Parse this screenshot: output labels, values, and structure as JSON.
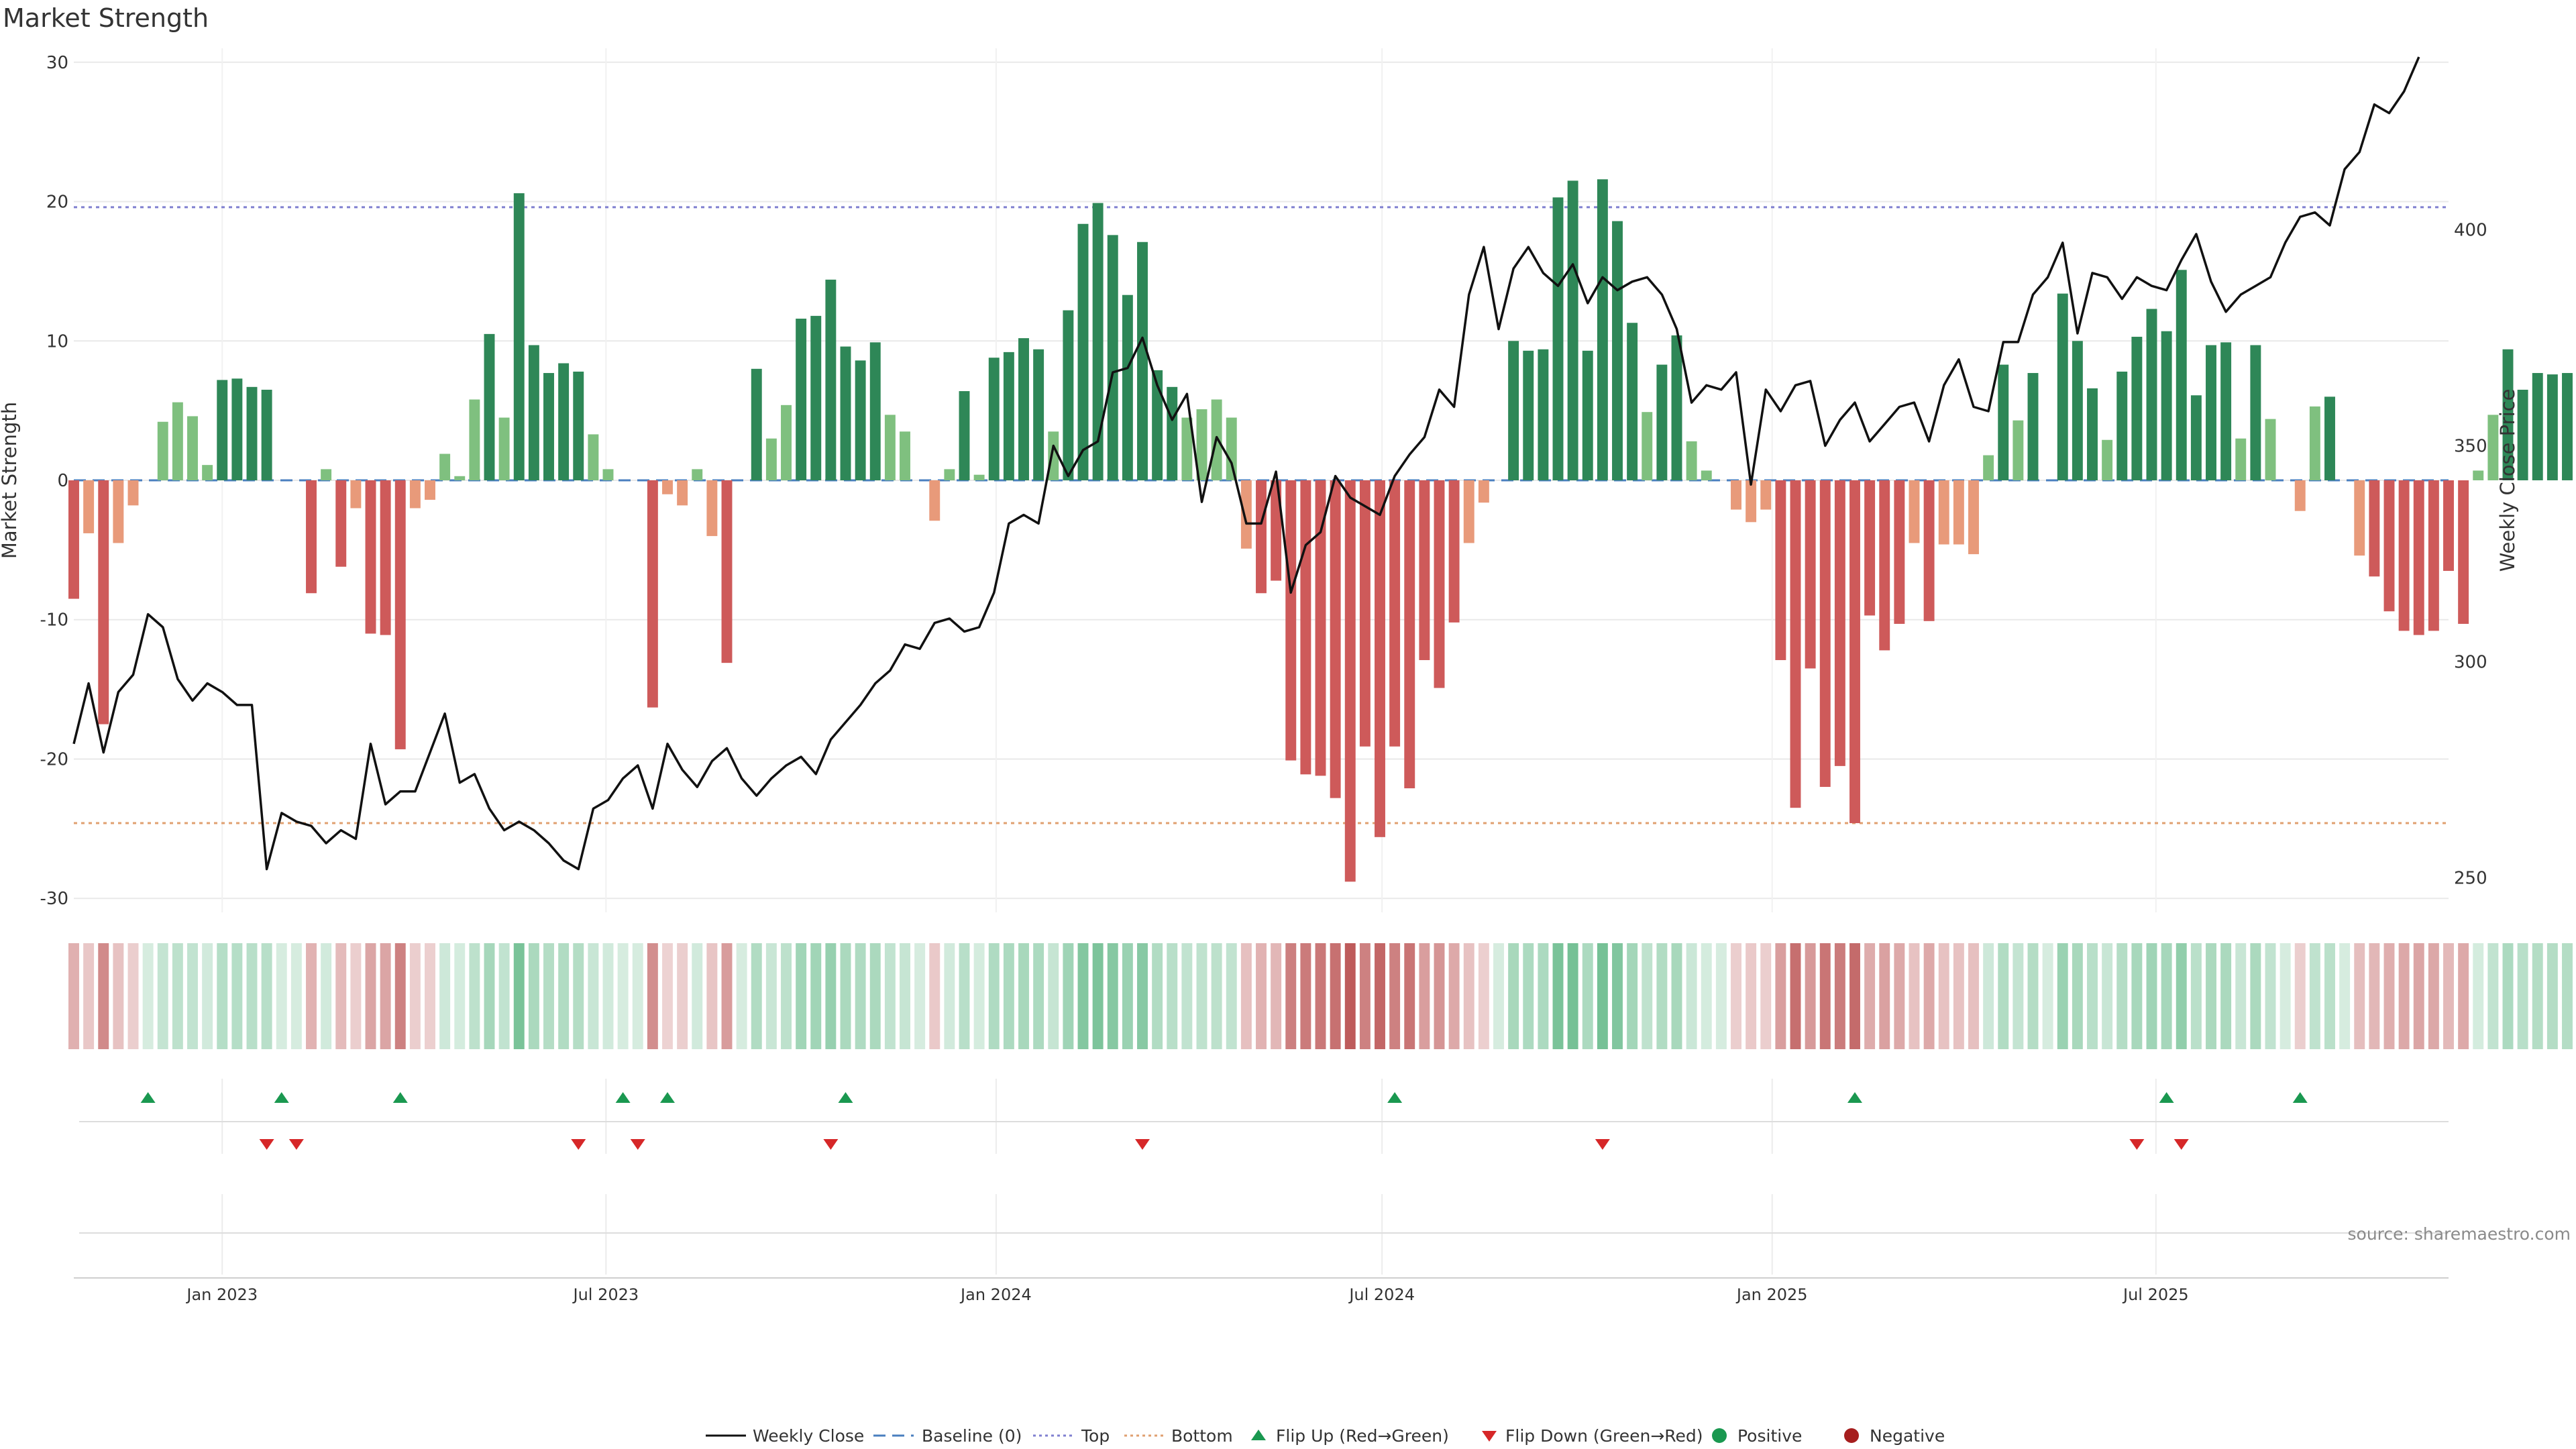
{
  "chart_data": {
    "type": "bar",
    "title": "Market Strength",
    "ylabel": "Market Strength",
    "y2label": "Weekly Close Price",
    "ylim": [
      -31,
      31
    ],
    "y2lim": [
      242,
      442
    ],
    "yticks": [
      30,
      20,
      10,
      0,
      -10,
      -20,
      -30
    ],
    "y2ticks": [
      400,
      350,
      300,
      250
    ],
    "xlim": [
      "2022-10-23",
      "2025-11-16"
    ],
    "xticks": [
      {
        "date": "2023-01-01",
        "label": "Jan 2023"
      },
      {
        "date": "2023-07-01",
        "label": "Jul 2023"
      },
      {
        "date": "2024-01-01",
        "label": "Jan 2024"
      },
      {
        "date": "2024-07-01",
        "label": "Jul 2024"
      },
      {
        "date": "2025-01-01",
        "label": "Jan 2025"
      },
      {
        "date": "2025-07-01",
        "label": "Jul 2025"
      }
    ],
    "grid": true,
    "series": [
      {
        "name": "Market Strength",
        "type": "bar",
        "start": "2022-10-23",
        "interval_days": 7,
        "values": [
          -8.5,
          -3.8,
          -17.5,
          -4.5,
          -1.8,
          0,
          4.2,
          5.6,
          4.6,
          1.1,
          7.2,
          7.3,
          6.7,
          6.5,
          0,
          0,
          -8.1,
          0.8,
          -6.2,
          -2,
          -11,
          -11.1,
          -19.3,
          -2,
          -1.4,
          1.9,
          0.3,
          5.8,
          10.5,
          4.5,
          20.6,
          9.7,
          7.7,
          8.4,
          7.8,
          3.3,
          0.8,
          0,
          0,
          -16.3,
          -1,
          -1.8,
          0.8,
          -4,
          -13.1,
          0,
          8,
          3,
          5.4,
          11.6,
          11.8,
          14.4,
          9.6,
          8.6,
          9.9,
          4.7,
          3.5,
          0,
          -2.9,
          0.8,
          6.4,
          0.4,
          8.8,
          9.2,
          10.2,
          9.4,
          3.5,
          12.2,
          18.4,
          19.9,
          17.6,
          13.3,
          17.1,
          7.9,
          6.7,
          4.5,
          5.1,
          5.8,
          4.5,
          -4.9,
          -8.1,
          -7.2,
          -20.1,
          -21.1,
          -21.2,
          -22.8,
          -28.8,
          -19.1,
          -25.6,
          -19.1,
          -22.1,
          -12.9,
          -14.9,
          -10.2,
          -4.5,
          -1.6,
          0,
          10,
          9.3,
          9.4,
          20.3,
          21.5,
          9.3,
          21.6,
          18.6,
          11.3,
          4.9,
          8.3,
          10.4,
          2.8,
          0.7,
          0,
          -2.1,
          -3,
          -2.1,
          -12.9,
          -23.5,
          -13.5,
          -22,
          -20.5,
          -24.6,
          -9.7,
          -12.2,
          -10.3,
          -4.5,
          -10.1,
          -4.6,
          -4.6,
          -5.3,
          1.8,
          8.3,
          4.3,
          7.7,
          0,
          13.4,
          10,
          6.6,
          2.9,
          7.8,
          10.3,
          12.3,
          10.7,
          15.1,
          6.1,
          9.7,
          9.9,
          3,
          9.7,
          4.4,
          0,
          -2.2,
          5.3,
          6,
          0,
          -5.4,
          -6.9,
          -9.4,
          -10.8,
          -11.1,
          -10.8,
          -6.5,
          -10.3,
          0.7,
          4.7,
          9.4,
          6.5,
          7.7,
          7.6,
          7.7
        ]
      },
      {
        "name": "Weekly Close",
        "type": "line",
        "axis": "right",
        "start": "2022-10-23",
        "interval_days": 7,
        "values": [
          281,
          295,
          279,
          293,
          297,
          311,
          308,
          296,
          291,
          295,
          293,
          290,
          290,
          252,
          265,
          263,
          262,
          258,
          261,
          259,
          281,
          267,
          270,
          270,
          279,
          288,
          272,
          274,
          266,
          261,
          263,
          261,
          258,
          254,
          252,
          266,
          268,
          273,
          276,
          266,
          281,
          275,
          271,
          277,
          280,
          273,
          269,
          273,
          276,
          278,
          274,
          282,
          286,
          290,
          295,
          298,
          304,
          303,
          309,
          310,
          307,
          308,
          316,
          332,
          334,
          332,
          350,
          343,
          349,
          351,
          367,
          368,
          375,
          364,
          356,
          362,
          337,
          352,
          346,
          332,
          332,
          344,
          316,
          327,
          330,
          343,
          338,
          336,
          334,
          343,
          348,
          352,
          363,
          359,
          385,
          396,
          377,
          391,
          396,
          390,
          387,
          392,
          383,
          389,
          386,
          388,
          389,
          385,
          377,
          360,
          364,
          363,
          367,
          341,
          363,
          358,
          364,
          365,
          350,
          356,
          360,
          351,
          355,
          359,
          360,
          351,
          364,
          370,
          359,
          358,
          374,
          374,
          385,
          389,
          397,
          376,
          390,
          389,
          384,
          389,
          387,
          386,
          393,
          399,
          388,
          381,
          385,
          387,
          389,
          397,
          403,
          404,
          401,
          414,
          418,
          429,
          427,
          432,
          440
        ]
      }
    ],
    "baseline": 0,
    "top": 19.6,
    "bottom": -24.6,
    "flip_up_indices": [
      5,
      14,
      22,
      37,
      40,
      52,
      89,
      120,
      141,
      150
    ],
    "flip_down_indices": [
      13,
      15,
      34,
      38,
      51,
      72,
      103,
      139,
      142
    ],
    "colors": {
      "pos_strong": "#2e8757",
      "pos_weak": "#7fc07f",
      "neg_strong": "#ce5a5a",
      "neg_weak": "#e89a7a",
      "close_line": "#111111",
      "baseline": "#4a7fbf",
      "top_line": "#8080d0",
      "bottom_line": "#e0a070",
      "flip_up": "#1a9850",
      "flip_down": "#d62728",
      "positive_dot": "#1a9850",
      "negative_dot": "#a61e1e"
    }
  },
  "legend": {
    "weekly_close": "Weekly Close",
    "baseline": "Baseline (0)",
    "top": "Top",
    "bottom": "Bottom",
    "flip_up": "Flip Up (Red→Green)",
    "flip_down": "Flip Down (Green→Red)",
    "positive": "Positive",
    "negative": "Negative"
  },
  "source": "source: sharemaestro.com"
}
